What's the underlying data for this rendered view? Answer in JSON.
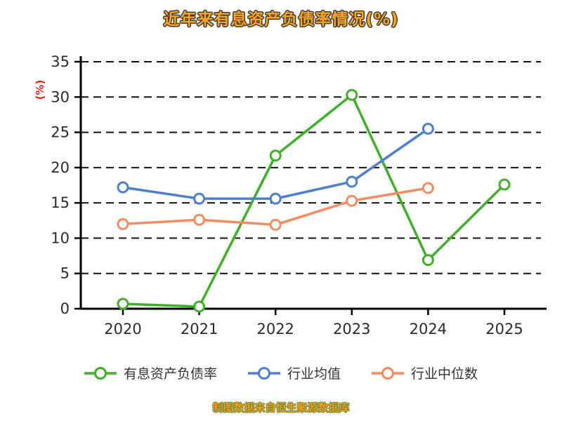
{
  "page": {
    "footer_note": "制图数据来自恒生聚源数据库"
  },
  "chart_data": {
    "type": "line",
    "title": "近年来有息资产负债率情况(%)",
    "ylabel": "(%)",
    "categories": [
      "2020",
      "2021",
      "2022",
      "2023",
      "2024",
      "2025"
    ],
    "series": [
      {
        "name": "有息资产负债率",
        "color": "#3fae2a",
        "values": [
          0.7,
          0.3,
          21.7,
          30.3,
          6.9,
          17.6
        ]
      },
      {
        "name": "行业均值",
        "color": "#4e7ed0",
        "values": [
          17.2,
          15.6,
          15.6,
          18.0,
          25.5,
          null
        ]
      },
      {
        "name": "行业中位数",
        "color": "#f58b61",
        "values": [
          12.0,
          12.6,
          11.9,
          15.3,
          17.1,
          null
        ]
      }
    ],
    "ylim": [
      0,
      35
    ],
    "yticks": [
      0,
      5,
      10,
      15,
      20,
      25,
      30,
      35
    ],
    "grid": {
      "horizontal": true,
      "style": "dashed",
      "color": "#141414"
    },
    "legend_position": "bottom",
    "background": "#ffffff",
    "axis_color": "#000000",
    "tick_label_color": "#2b2b2b",
    "ylabel_color": "#e8241c",
    "title_color": "#ffa321"
  }
}
